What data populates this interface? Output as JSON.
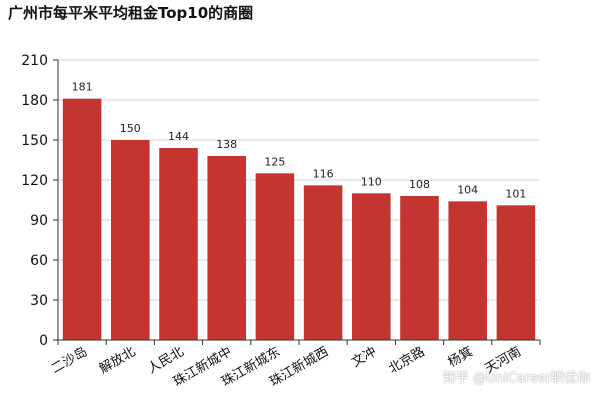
{
  "chart_data": {
    "type": "bar",
    "title": "广州市每平米平均租金Top10的商圈",
    "categories": [
      "二沙岛",
      "解放北",
      "人民北",
      "珠江新城中",
      "珠江新城东",
      "珠江新城西",
      "文冲",
      "北京路",
      "杨箕",
      "天河南"
    ],
    "values": [
      181,
      150,
      144,
      138,
      125,
      116,
      110,
      108,
      104,
      101
    ],
    "ylim": [
      0,
      210
    ],
    "yticks": [
      0,
      30,
      60,
      90,
      120,
      150,
      180,
      210
    ],
    "grid": true,
    "bar_color": "#c23531",
    "xlabel": "",
    "ylabel": ""
  },
  "watermark": "知乎 @UniCareer职优你"
}
